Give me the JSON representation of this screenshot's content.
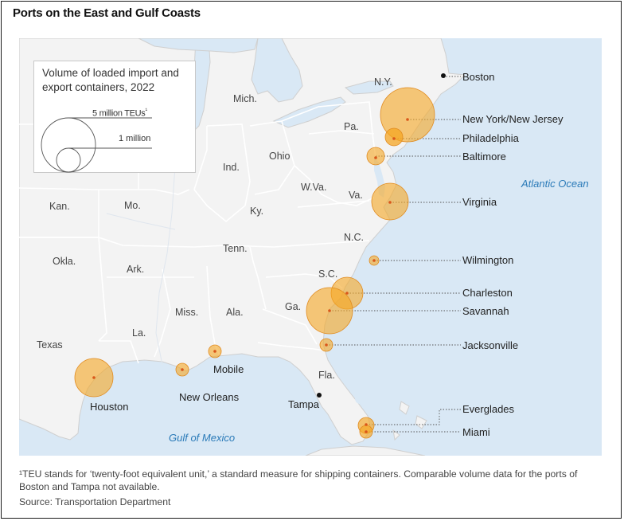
{
  "title": "Ports on the East and Gulf Coasts",
  "legend": {
    "title": "Volume of loaded import and export containers, 2022",
    "large_label": "5 million TEUs",
    "large_mark": "¹",
    "small_label": "1 million"
  },
  "states": {
    "ny": "N.Y.",
    "mich": "Mich.",
    "pa": "Pa.",
    "ohio": "Ohio",
    "ind": "Ind.",
    "wva": "W.Va.",
    "va": "Va.",
    "kan": "Kan.",
    "mo": "Mo.",
    "ky": "Ky.",
    "nc": "N.C.",
    "okla": "Okla.",
    "ark": "Ark.",
    "tenn": "Tenn.",
    "sc": "S.C.",
    "texas": "Texas",
    "la": "La.",
    "miss": "Miss.",
    "ala": "Ala.",
    "ga": "Ga.",
    "fla": "Fla."
  },
  "water": {
    "atlantic": "Atlantic Ocean",
    "gulf": "Gulf of Mexico"
  },
  "ports": {
    "boston": "Boston",
    "nynj": "New York/New Jersey",
    "philadelphia": "Philadelphia",
    "baltimore": "Baltimore",
    "virginia": "Virginia",
    "wilmington": "Wilmington",
    "charleston": "Charleston",
    "savannah": "Savannah",
    "jacksonville": "Jacksonville",
    "everglades": "Everglades",
    "miami": "Miami",
    "houston": "Houston",
    "new_orleans": "New Orleans",
    "mobile": "Mobile",
    "tampa": "Tampa"
  },
  "colors": {
    "bubble": "#f5a623",
    "bubble_dot": "#d9571a",
    "water": "#d9e8f5",
    "land": "#f3f3f3"
  },
  "note": "¹TEU stands for ‘twenty-foot equivalent unit,’ a standard measure for shipping containers. Comparable volume data for the ports of Boston and Tampa not available.",
  "source": "Source: Transportation Department"
}
